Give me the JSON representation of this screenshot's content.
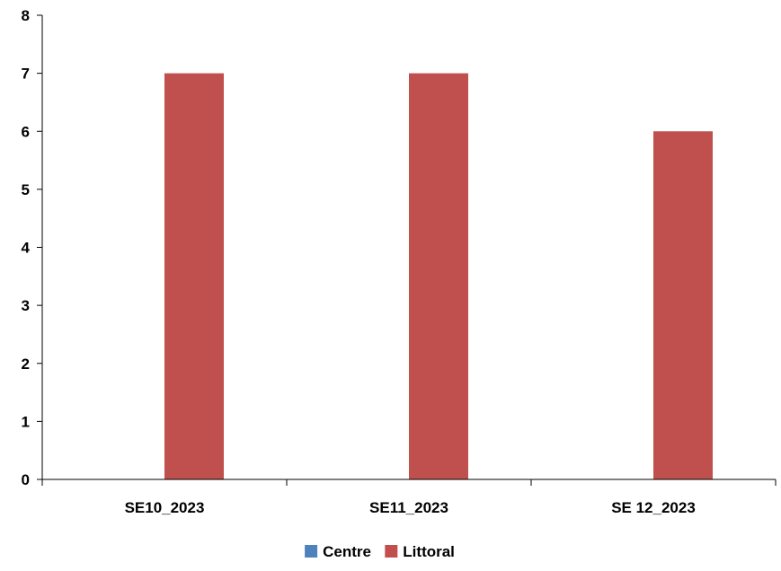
{
  "chart_data": {
    "type": "bar",
    "title": "",
    "xlabel": "",
    "ylabel": "",
    "categories": [
      "SE10_2023",
      "SE11_2023",
      "SE 12_2023"
    ],
    "series": [
      {
        "name": "Centre",
        "color": "#4f81bd",
        "values": [
          0,
          0,
          0
        ]
      },
      {
        "name": "Littoral",
        "color": "#c0504d",
        "values": [
          7,
          7,
          6
        ]
      }
    ],
    "ylim": [
      0,
      8
    ],
    "yticks": [
      "0",
      "1",
      "2",
      "3",
      "4",
      "5",
      "6",
      "7",
      "8"
    ],
    "grid": false,
    "legend_position": "bottom"
  }
}
